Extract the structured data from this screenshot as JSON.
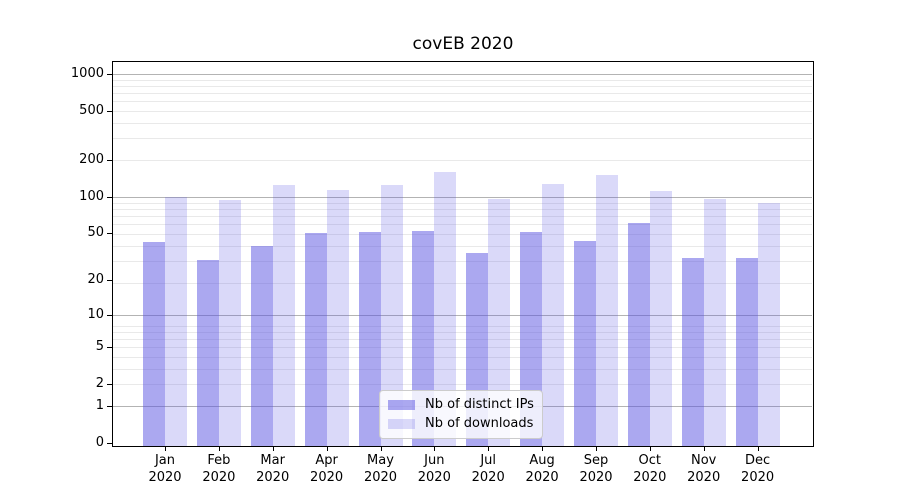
{
  "title": "covEB 2020",
  "chart_data": {
    "type": "bar",
    "title": "covEB 2020",
    "categories": [
      "Jan",
      "Feb",
      "Mar",
      "Apr",
      "May",
      "Jun",
      "Jul",
      "Aug",
      "Sep",
      "Oct",
      "Nov",
      "Dec"
    ],
    "x_year_line": "2020",
    "series": [
      {
        "name": "Nb of distinct IPs",
        "values": [
          42,
          30,
          39,
          50,
          51,
          52,
          34,
          51,
          43,
          60,
          31,
          31
        ]
      },
      {
        "name": "Nb of downloads",
        "values": [
          100,
          93,
          125,
          113,
          124,
          160,
          95,
          127,
          150,
          112,
          96,
          89
        ]
      }
    ],
    "yticks": [
      0,
      1,
      2,
      5,
      10,
      20,
      50,
      100,
      200,
      500,
      1000
    ],
    "yscale": "log(value+1)",
    "ylim": [
      0,
      1200
    ],
    "grid": "major and minor horizontal gridlines",
    "legend_position": "lower center inside plot",
    "colors": {
      "series_base": "#5752e2",
      "distinct_ips_fill": "rgba(87,82,226,0.50)",
      "downloads_fill": "rgba(87,82,226,0.22)",
      "grid_major": "#b3b3b3",
      "grid_minor": "#e9e9e9",
      "frame": "#000000",
      "background": "#ffffff"
    }
  },
  "legend": {
    "items": [
      {
        "label": "Nb of distinct IPs"
      },
      {
        "label": "Nb of downloads"
      }
    ]
  }
}
